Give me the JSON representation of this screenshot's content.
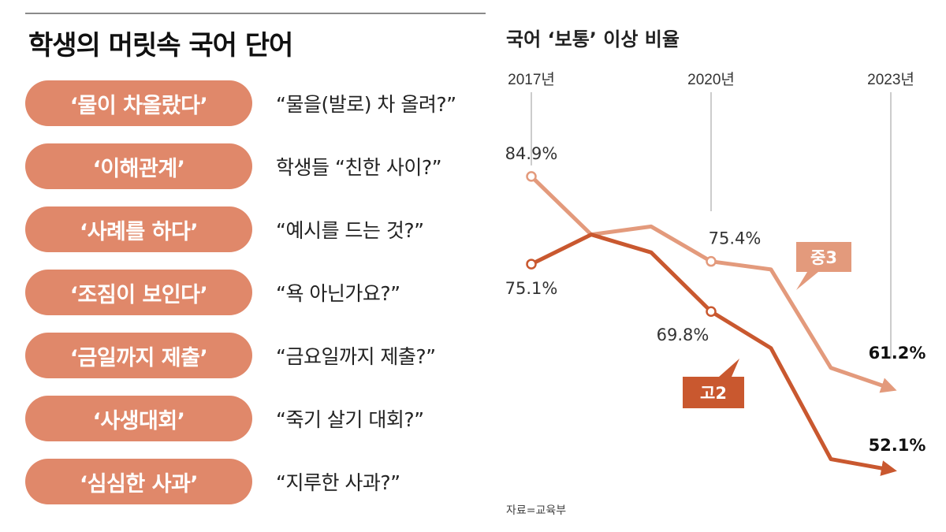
{
  "left": {
    "title": "학생의 머릿속 국어 단어",
    "items": [
      {
        "term": "‘물이 차올랐다’",
        "meaning": "“물을(발로) 차 올려?”"
      },
      {
        "term": "‘이해관계’",
        "meaning": "학생들 “친한 사이?”"
      },
      {
        "term": "‘사례를 하다’",
        "meaning": "“예시를 드는 것?”"
      },
      {
        "term": "‘조짐이 보인다’",
        "meaning": "“욕 아닌가요?”"
      },
      {
        "term": "‘금일까지 제출’",
        "meaning": "“금요일까지 제출?”"
      },
      {
        "term": "‘사생대회’",
        "meaning": "“죽기 살기 대회?”"
      },
      {
        "term": "‘심심한 사과’",
        "meaning": "“지루한 사과?”"
      }
    ]
  },
  "colors": {
    "pill": "#e0886a",
    "middle_school": "#e39a7c",
    "high_school": "#c9582f"
  },
  "chart_data": {
    "type": "line",
    "title": "국어 ‘보통’ 이상 비율",
    "source": "자료=교육부",
    "x": [
      2017,
      2018,
      2019,
      2020,
      2021,
      2022,
      2023
    ],
    "x_tick_labels": [
      "2017년",
      "2020년",
      "2023년"
    ],
    "ylim": [
      50,
      87
    ],
    "series": [
      {
        "name": "중3",
        "values": [
          84.9,
          78.4,
          79.3,
          75.4,
          74.5,
          63.5,
          61.2
        ],
        "labels": {
          "0": "84.9%",
          "3": "75.4%",
          "6": "61.2%"
        }
      },
      {
        "name": "고2",
        "values": [
          75.1,
          78.4,
          76.4,
          69.8,
          65.7,
          53.3,
          52.1
        ],
        "labels": {
          "0": "75.1%",
          "3": "69.8%",
          "6": "52.1%"
        }
      }
    ]
  }
}
